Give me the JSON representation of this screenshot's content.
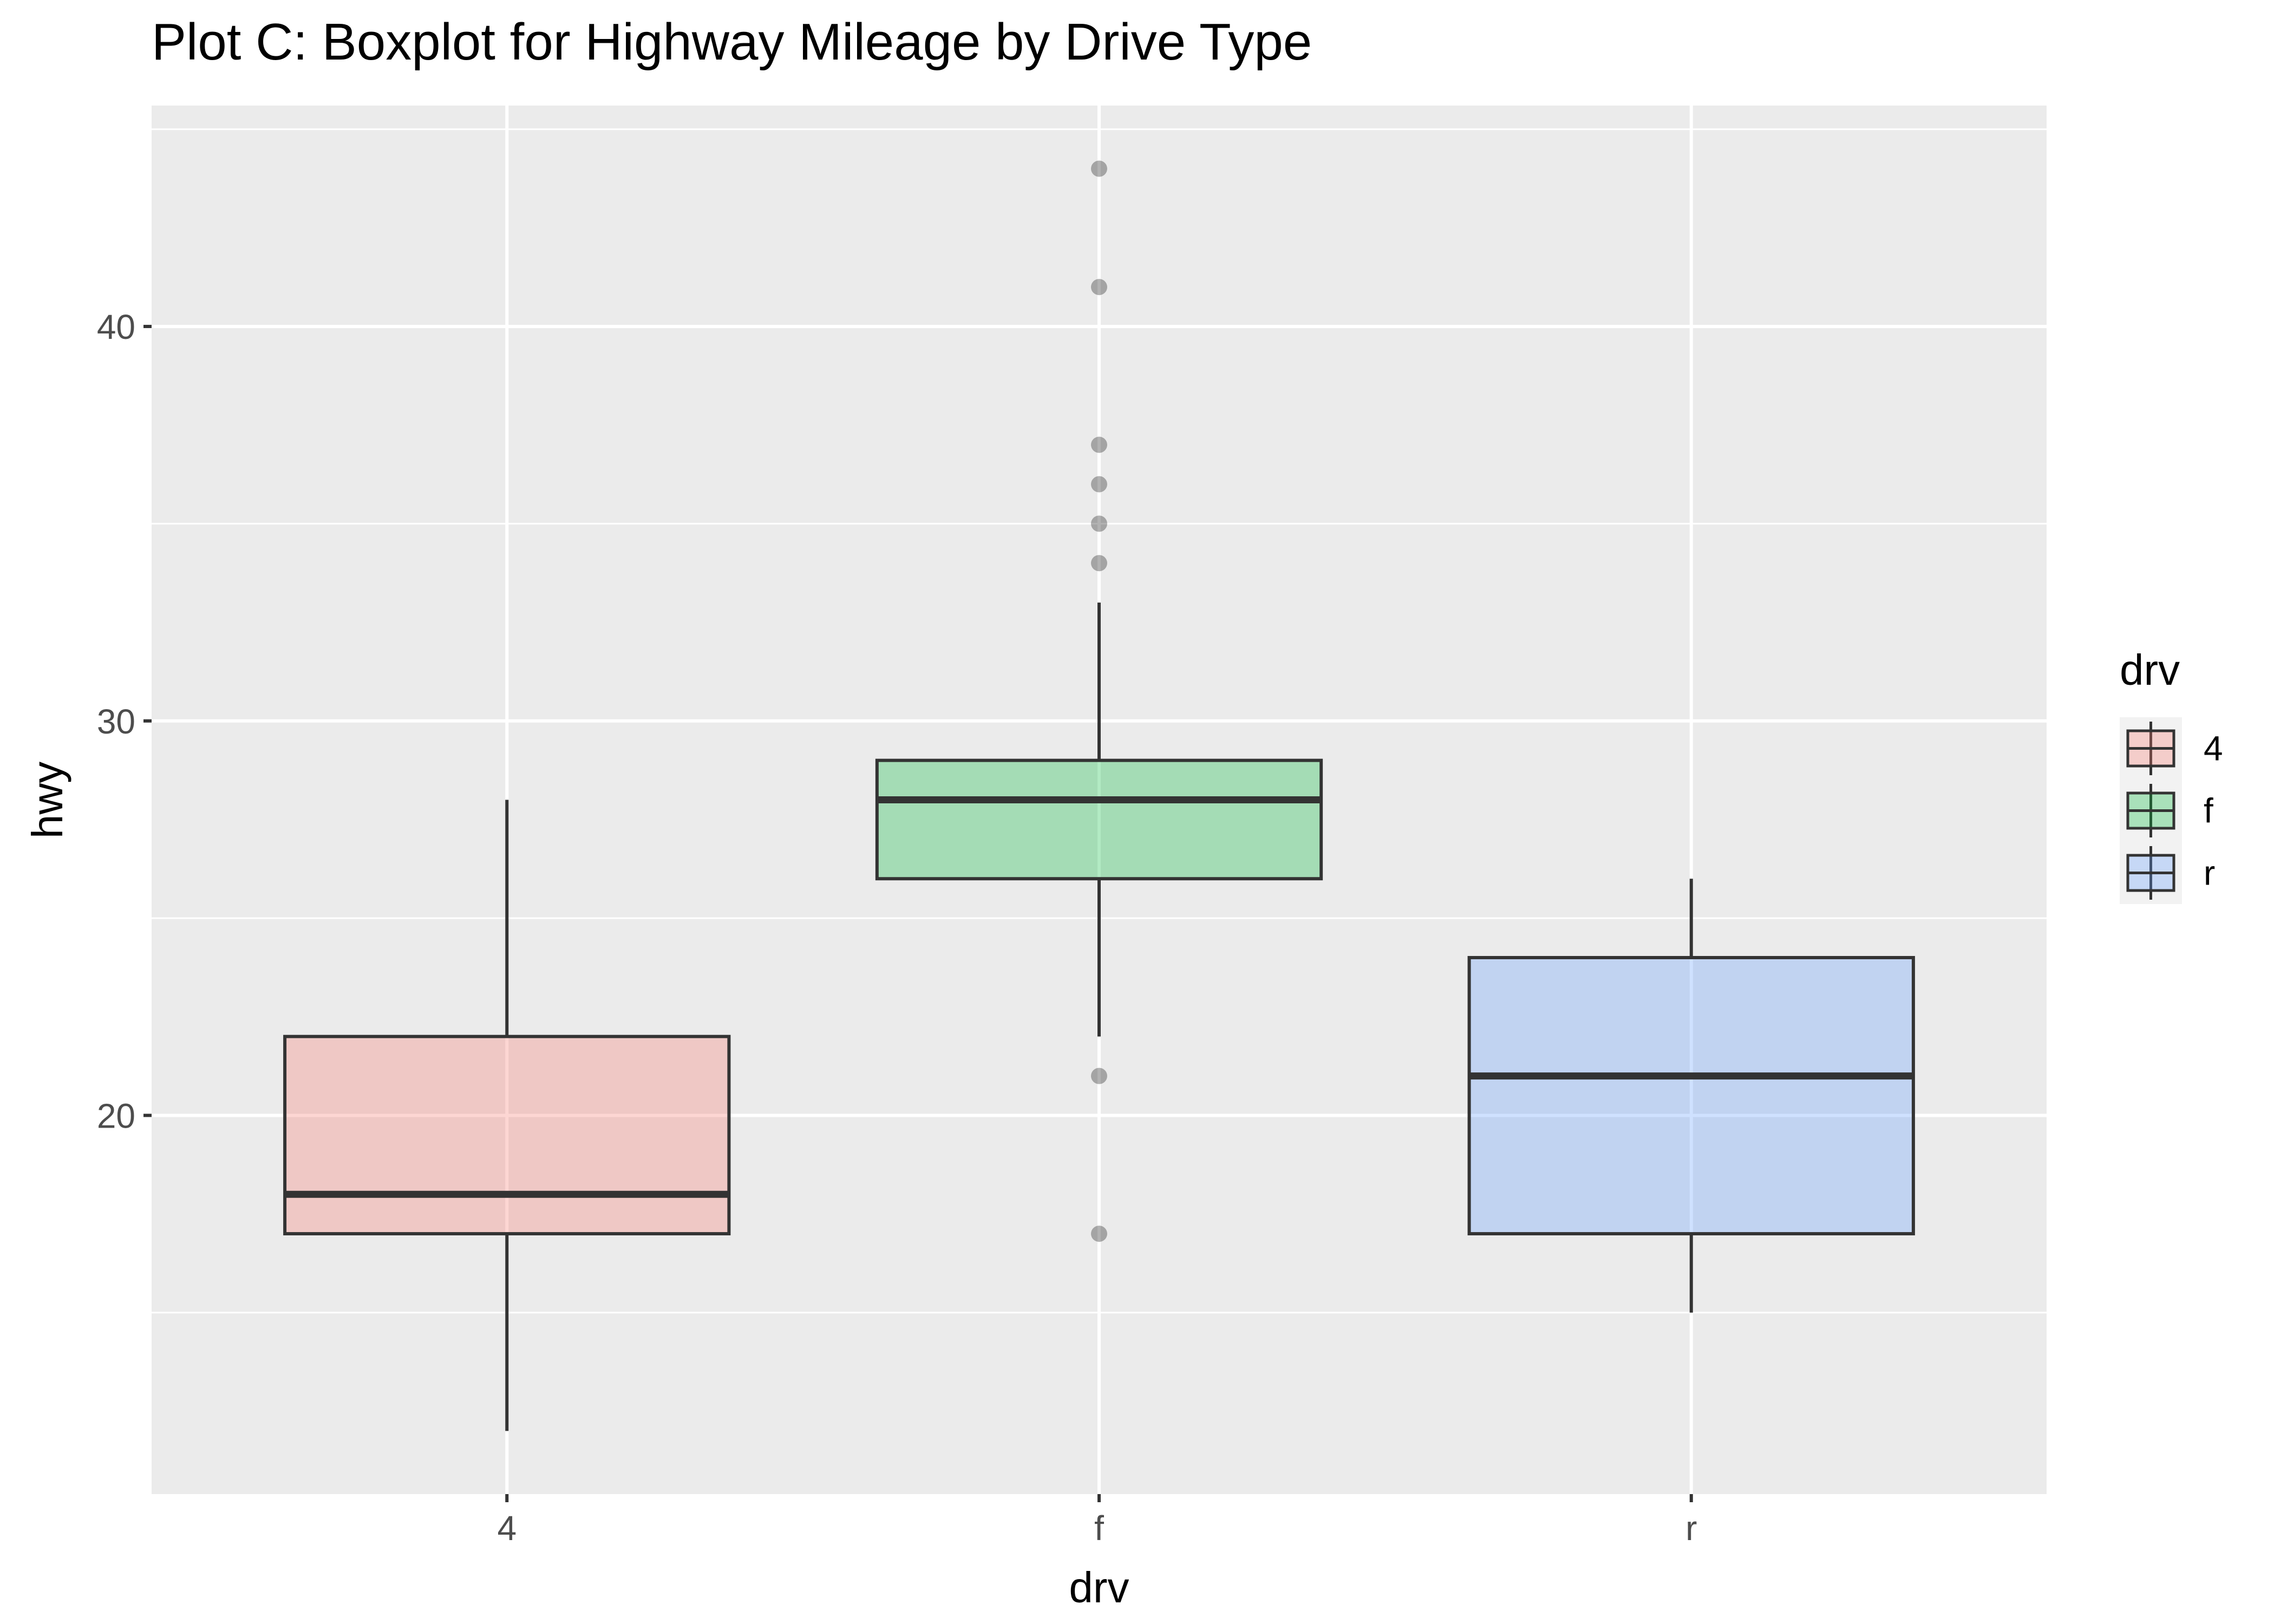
{
  "chart_data": {
    "type": "boxplot",
    "title": "Plot C: Boxplot for Highway Mileage by Drive  Type",
    "xlabel": "drv",
    "ylabel": "hwy",
    "ylim": [
      10.4,
      45.6
    ],
    "yticks": [
      20,
      30,
      40
    ],
    "categories": [
      "4",
      "f",
      "r"
    ],
    "boxes": [
      {
        "category": "4",
        "q1": 17,
        "median": 18,
        "q3": 22,
        "whisker_low": 12,
        "whisker_high": 28,
        "outliers": []
      },
      {
        "category": "f",
        "q1": 26,
        "median": 28,
        "q3": 29,
        "whisker_low": 22,
        "whisker_high": 33,
        "outliers": [
          44,
          41,
          37,
          36,
          35,
          34,
          21,
          17
        ]
      },
      {
        "category": "r",
        "q1": 17,
        "median": 21,
        "q3": 24,
        "whisker_low": 15,
        "whisker_high": 26,
        "outliers": []
      }
    ],
    "colors": {
      "4": "#F8766D",
      "f": "#00BA38",
      "r": "#619CFF"
    },
    "fill_alpha": 0.3,
    "panel_background": "#EBEBEB",
    "grid": true,
    "legend": {
      "title": "drv",
      "entries": [
        "4",
        "f",
        "r"
      ],
      "placement": "right"
    }
  }
}
